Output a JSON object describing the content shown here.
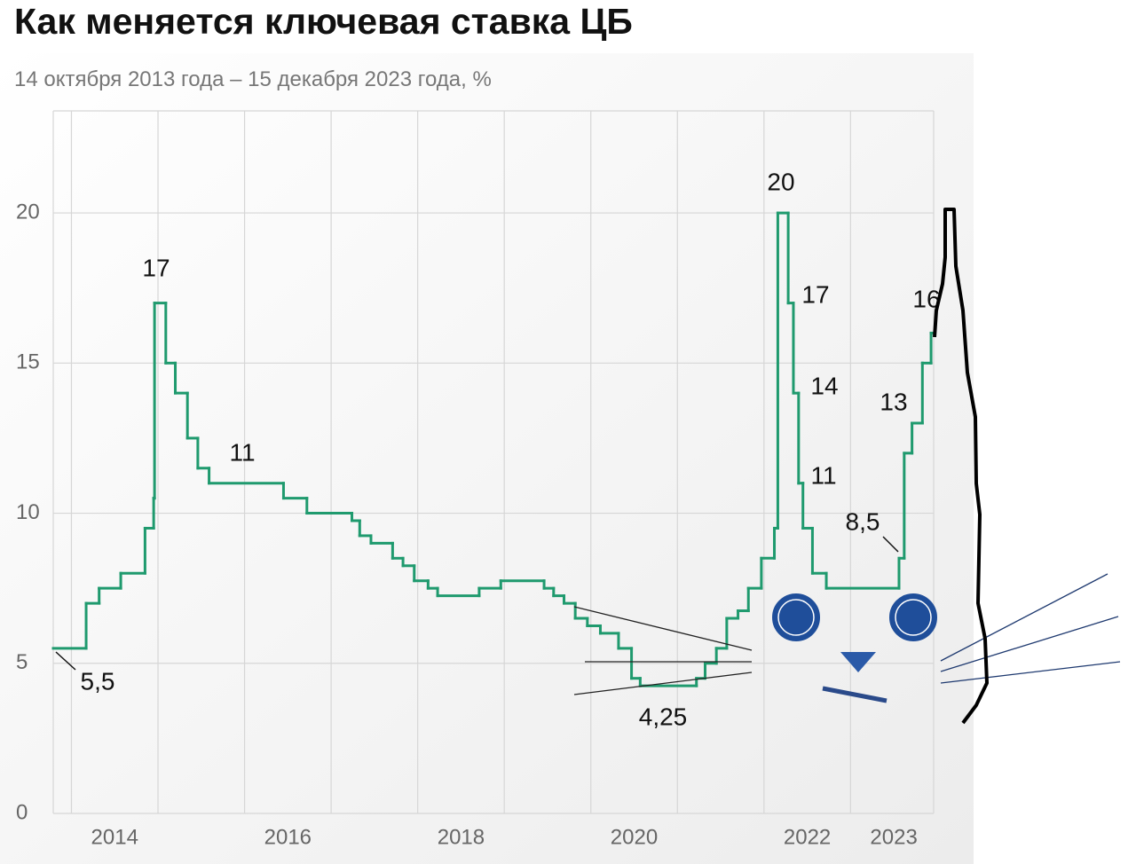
{
  "chart_data": {
    "type": "step-line",
    "title": "Как меняется ключевая ставка ЦБ",
    "subtitle": "14 октября 2013 года – 15 декабря 2023 года, %",
    "color": "#1f9a6e",
    "xlim": [
      2013.79,
      2023.96
    ],
    "ylim": [
      0,
      23.4
    ],
    "yticks": [
      0,
      5,
      10,
      15,
      20
    ],
    "xgrid": [
      2014,
      2015,
      2016,
      2017,
      2018,
      2019,
      2020,
      2021,
      2022,
      2023
    ],
    "xticks": [
      {
        "value": 2014.5,
        "label": "2014"
      },
      {
        "value": 2016.5,
        "label": "2016"
      },
      {
        "value": 2018.5,
        "label": "2018"
      },
      {
        "value": 2020.5,
        "label": "2020"
      },
      {
        "value": 2022.5,
        "label": "2022"
      },
      {
        "value": 2023.5,
        "label": "2023"
      }
    ],
    "grid": true,
    "x": [
      2013.79,
      2014.17,
      2014.32,
      2014.57,
      2014.85,
      2014.95,
      2014.96,
      2015.09,
      2015.2,
      2015.34,
      2015.46,
      2015.59,
      2016.45,
      2016.72,
      2017.24,
      2017.33,
      2017.46,
      2017.71,
      2017.83,
      2017.96,
      2018.12,
      2018.23,
      2018.71,
      2018.96,
      2019.46,
      2019.57,
      2019.69,
      2019.82,
      2019.96,
      2020.11,
      2020.32,
      2020.47,
      2020.57,
      2021.22,
      2021.32,
      2021.45,
      2021.57,
      2021.7,
      2021.82,
      2021.97,
      2022.12,
      2022.16,
      2022.28,
      2022.34,
      2022.4,
      2022.45,
      2022.56,
      2022.72,
      2023.56,
      2023.62,
      2023.71,
      2023.83,
      2023.93
    ],
    "values": [
      5.5,
      7,
      7.5,
      8,
      9.5,
      10.5,
      17,
      15,
      14,
      12.5,
      11.5,
      11,
      10.5,
      10,
      9.75,
      9.25,
      9,
      8.5,
      8.25,
      7.75,
      7.5,
      7.25,
      7.5,
      7.75,
      7.5,
      7.25,
      7,
      6.5,
      6.25,
      6,
      5.5,
      4.5,
      4.25,
      4.5,
      5,
      5.5,
      6.5,
      6.75,
      7.5,
      8.5,
      9.5,
      20,
      17,
      14,
      11,
      9.5,
      8,
      7.5,
      8.5,
      12,
      13,
      15,
      16
    ],
    "annotations": [
      {
        "value": 5.5,
        "label": "5,5"
      },
      17,
      11,
      {
        "value": 4.25,
        "label": "4,25"
      },
      20,
      17,
      14,
      11,
      {
        "value": 8.5,
        "label": "8,5"
      },
      13,
      16
    ]
  }
}
